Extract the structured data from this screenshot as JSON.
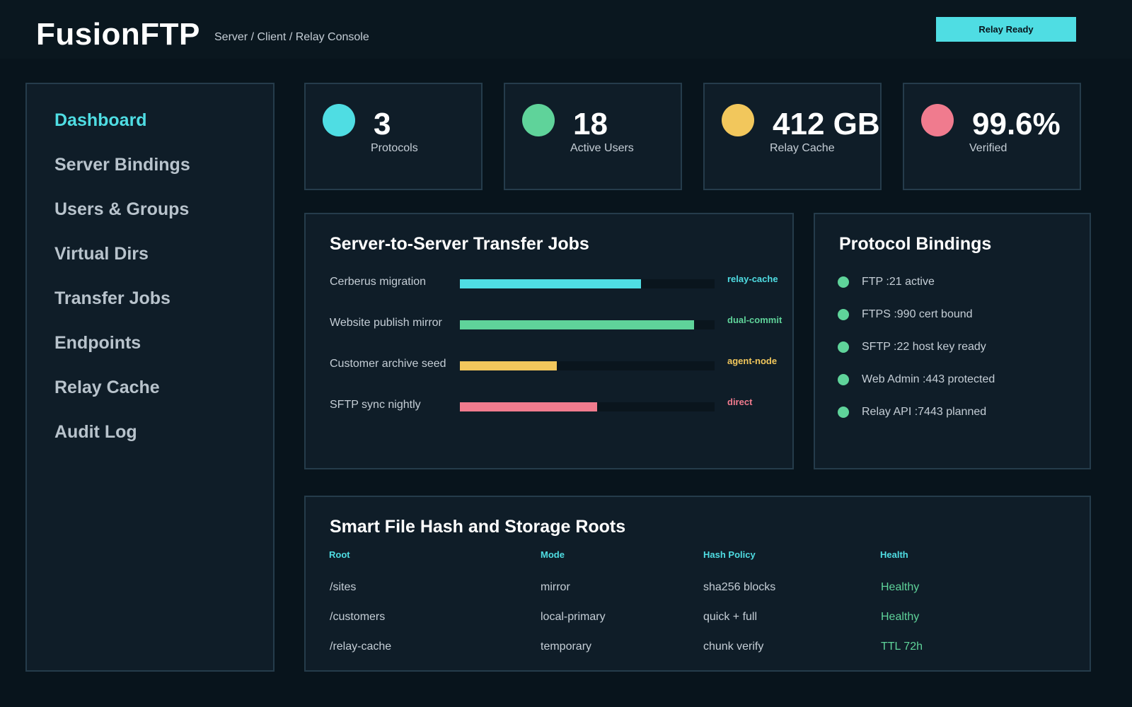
{
  "header": {
    "brand": "FusionFTP",
    "subtitle": "Server / Client / Relay Console",
    "status_button": "Relay Ready"
  },
  "sidebar": {
    "items": [
      {
        "label": "Dashboard",
        "active": true
      },
      {
        "label": "Server Bindings"
      },
      {
        "label": "Users & Groups"
      },
      {
        "label": "Virtual Dirs"
      },
      {
        "label": "Transfer Jobs"
      },
      {
        "label": "Endpoints"
      },
      {
        "label": "Relay Cache"
      },
      {
        "label": "Audit Log"
      }
    ]
  },
  "stats": [
    {
      "value": "3",
      "label": "Protocols",
      "color": "#4fdde3"
    },
    {
      "value": "18",
      "label": "Active Users",
      "color": "#5fd39a"
    },
    {
      "value": "412 GB",
      "label": "Relay Cache",
      "color": "#f2c75c"
    },
    {
      "value": "99.6%",
      "label": "Verified",
      "color": "#f07b8e"
    }
  ],
  "jobs": {
    "title": "Server-to-Server Transfer Jobs",
    "items": [
      {
        "name": "Cerberus migration",
        "progress": 0.71,
        "tag": "relay-cache",
        "color": "#4fdde3"
      },
      {
        "name": "Website publish mirror",
        "progress": 0.92,
        "tag": "dual-commit",
        "color": "#5fd39a"
      },
      {
        "name": "Customer archive seed",
        "progress": 0.38,
        "tag": "agent-node",
        "color": "#f2c75c"
      },
      {
        "name": "SFTP sync nightly",
        "progress": 0.54,
        "tag": "direct",
        "color": "#f07b8e"
      }
    ]
  },
  "bindings": {
    "title": "Protocol Bindings",
    "items": [
      "FTP :21 active",
      "FTPS :990 cert bound",
      "SFTP :22 host key ready",
      "Web Admin :443 protected",
      "Relay API :7443 planned"
    ]
  },
  "storage": {
    "title": "Smart File Hash and Storage Roots",
    "columns": [
      "Root",
      "Mode",
      "Hash Policy",
      "Health"
    ],
    "rows": [
      [
        "/sites",
        "mirror",
        "sha256 blocks",
        "Healthy"
      ],
      [
        "/customers",
        "local-primary",
        "quick + full",
        "Healthy"
      ],
      [
        "/relay-cache",
        "temporary",
        "chunk verify",
        "TTL 72h"
      ]
    ]
  }
}
